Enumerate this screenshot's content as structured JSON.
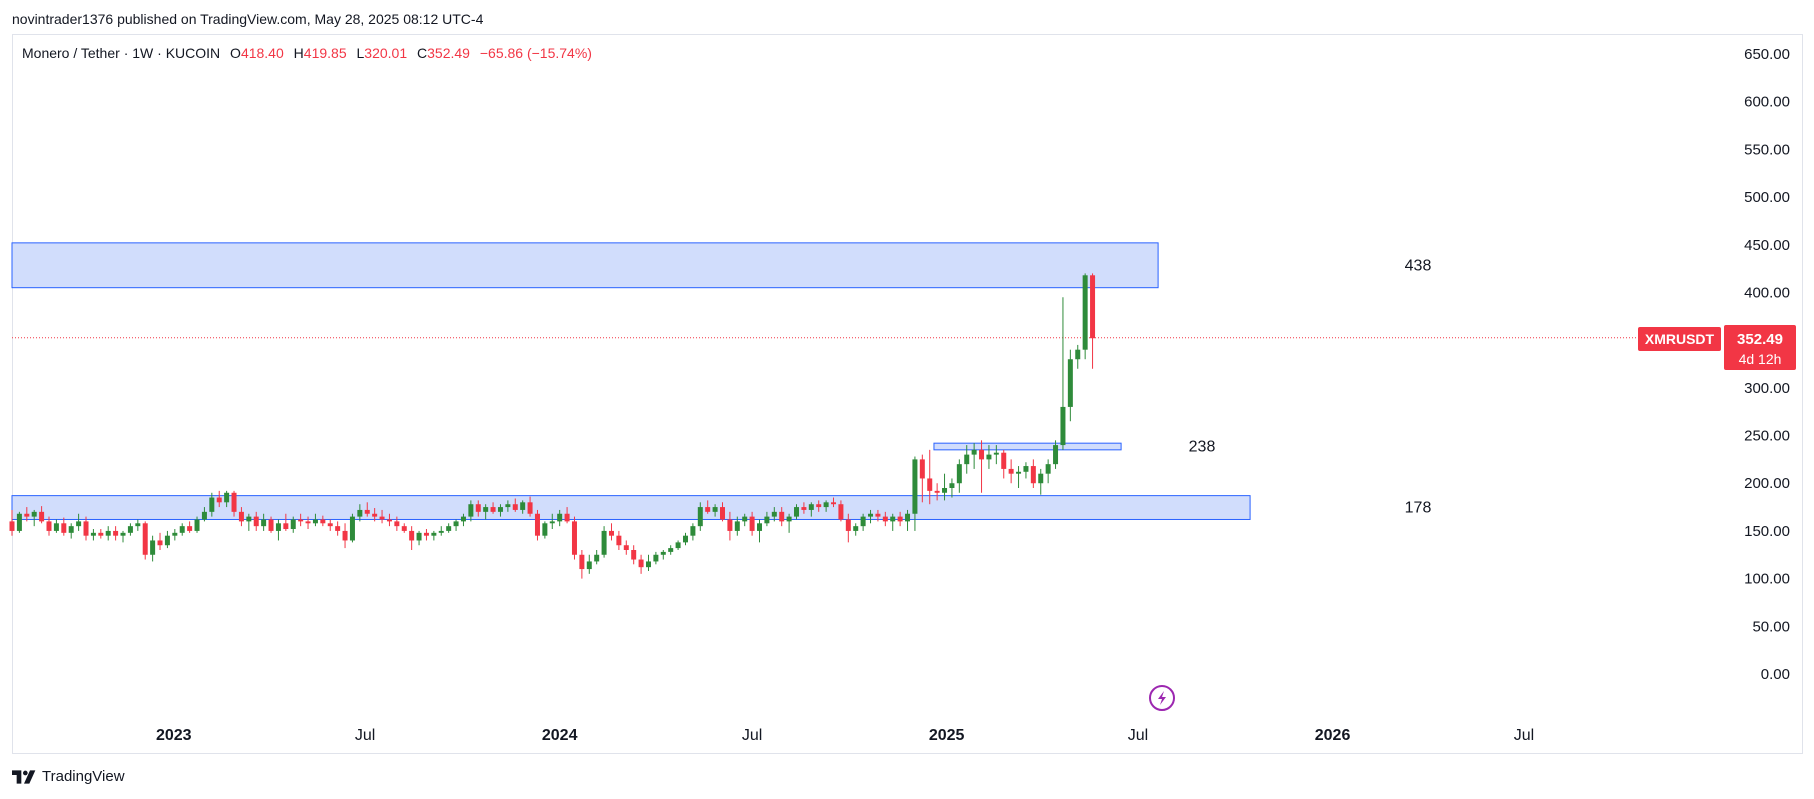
{
  "header": {
    "published": "novintrader1376 published on TradingView.com, May 28, 2025 08:12 UTC-4"
  },
  "legend": {
    "pair": "Monero / Tether",
    "sep1": "·",
    "interval": "1W",
    "sep2": "·",
    "exchange": "KUCOIN",
    "o_label": "O",
    "o_value": "418.40",
    "h_label": "H",
    "h_value": "419.85",
    "l_label": "L",
    "l_value": "320.01",
    "c_label": "C",
    "c_value": "352.49",
    "change": "−65.86 (−15.74%)"
  },
  "price_badge": {
    "symbol": "XMRUSDT",
    "price": "352.49",
    "countdown": "4d 12h"
  },
  "footer": {
    "brand": "TradingView",
    "logo_icon": "tradingview-logo-icon"
  },
  "colors": {
    "up": "#22ab94",
    "up_body": "#2e8b3a",
    "down": "#f23645",
    "zone_fill": "#d1ddfc",
    "zone_border": "#2962ff",
    "last_price_line": "#f23645",
    "badge": "#f23645",
    "flash_icon": "#9c27b0"
  },
  "chart_data": {
    "type": "candlestick",
    "title": "Monero / Tether · 1W · KUCOIN",
    "y_axis": {
      "side": "right",
      "range": [
        0,
        650
      ],
      "ticks": [
        "0.00",
        "50.00",
        "100.00",
        "150.00",
        "200.00",
        "250.00",
        "300.00",
        "350.00",
        "400.00",
        "450.00",
        "500.00",
        "550.00",
        "600.00",
        "650.00"
      ]
    },
    "x_axis": {
      "range": [
        "2022-08-01",
        "2026-10-15"
      ],
      "ticks": [
        {
          "label": "2023",
          "date": "2023-01-01",
          "bold": true
        },
        {
          "label": "Jul",
          "date": "2023-07-01",
          "bold": false
        },
        {
          "label": "2024",
          "date": "2024-01-01",
          "bold": true
        },
        {
          "label": "Jul",
          "date": "2024-07-01",
          "bold": false
        },
        {
          "label": "2025",
          "date": "2025-01-01",
          "bold": true
        },
        {
          "label": "Jul",
          "date": "2025-07-01",
          "bold": false
        },
        {
          "label": "2026",
          "date": "2026-01-01",
          "bold": true
        },
        {
          "label": "Jul",
          "date": "2026-07-01",
          "bold": false
        }
      ]
    },
    "grid": false,
    "last_price": 352.49,
    "zones": [
      {
        "label": "438",
        "y_low": 405,
        "y_high": 452,
        "x_start": "2022-08-01",
        "x_end": "2025-07-20"
      },
      {
        "label": "238",
        "y_low": 235,
        "y_high": 242,
        "x_start": "2024-12-20",
        "x_end": "2025-06-15"
      },
      {
        "label": "178",
        "y_low": 162,
        "y_high": 187,
        "x_start": "2022-08-01",
        "x_end": "2025-10-15"
      }
    ],
    "ohlc": [
      [
        "2022-08-01",
        160,
        172,
        145,
        150
      ],
      [
        "2022-08-08",
        150,
        170,
        148,
        168
      ],
      [
        "2022-08-15",
        168,
        175,
        160,
        165
      ],
      [
        "2022-08-22",
        165,
        172,
        155,
        170
      ],
      [
        "2022-08-29",
        170,
        176,
        158,
        160
      ],
      [
        "2022-09-05",
        160,
        165,
        145,
        150
      ],
      [
        "2022-09-12",
        150,
        162,
        148,
        158
      ],
      [
        "2022-09-19",
        158,
        164,
        145,
        148
      ],
      [
        "2022-09-26",
        148,
        158,
        142,
        155
      ],
      [
        "2022-10-03",
        155,
        168,
        150,
        160
      ],
      [
        "2022-10-10",
        160,
        165,
        140,
        145
      ],
      [
        "2022-10-17",
        145,
        152,
        140,
        148
      ],
      [
        "2022-10-24",
        148,
        152,
        142,
        145
      ],
      [
        "2022-10-31",
        145,
        155,
        140,
        150
      ],
      [
        "2022-11-07",
        150,
        155,
        140,
        145
      ],
      [
        "2022-11-14",
        145,
        150,
        138,
        148
      ],
      [
        "2022-11-21",
        148,
        158,
        145,
        155
      ],
      [
        "2022-11-28",
        155,
        162,
        150,
        158
      ],
      [
        "2022-12-05",
        158,
        160,
        120,
        125
      ],
      [
        "2022-12-12",
        125,
        145,
        118,
        140
      ],
      [
        "2022-12-19",
        140,
        148,
        130,
        135
      ],
      [
        "2022-12-26",
        135,
        150,
        132,
        145
      ],
      [
        "2023-01-02",
        145,
        152,
        140,
        148
      ],
      [
        "2023-01-09",
        148,
        158,
        145,
        155
      ],
      [
        "2023-01-16",
        155,
        160,
        148,
        150
      ],
      [
        "2023-01-23",
        150,
        165,
        148,
        162
      ],
      [
        "2023-01-30",
        162,
        175,
        160,
        170
      ],
      [
        "2023-02-06",
        170,
        190,
        165,
        185
      ],
      [
        "2023-02-13",
        185,
        192,
        175,
        180
      ],
      [
        "2023-02-20",
        180,
        192,
        175,
        190
      ],
      [
        "2023-02-27",
        190,
        192,
        165,
        170
      ],
      [
        "2023-03-06",
        170,
        175,
        155,
        160
      ],
      [
        "2023-03-13",
        160,
        168,
        150,
        165
      ],
      [
        "2023-03-20",
        165,
        170,
        150,
        155
      ],
      [
        "2023-03-27",
        155,
        168,
        150,
        162
      ],
      [
        "2023-04-03",
        162,
        165,
        148,
        150
      ],
      [
        "2023-04-10",
        150,
        162,
        140,
        158
      ],
      [
        "2023-04-17",
        158,
        168,
        150,
        152
      ],
      [
        "2023-04-24",
        152,
        165,
        148,
        162
      ],
      [
        "2023-05-01",
        162,
        168,
        155,
        160
      ],
      [
        "2023-05-08",
        160,
        165,
        152,
        158
      ],
      [
        "2023-05-15",
        158,
        168,
        155,
        162
      ],
      [
        "2023-05-22",
        162,
        166,
        155,
        158
      ],
      [
        "2023-05-29",
        158,
        162,
        150,
        155
      ],
      [
        "2023-06-05",
        155,
        160,
        145,
        150
      ],
      [
        "2023-06-12",
        150,
        158,
        132,
        140
      ],
      [
        "2023-06-19",
        140,
        168,
        138,
        165
      ],
      [
        "2023-06-26",
        165,
        178,
        160,
        172
      ],
      [
        "2023-07-03",
        172,
        180,
        165,
        168
      ],
      [
        "2023-07-10",
        168,
        174,
        160,
        165
      ],
      [
        "2023-07-17",
        165,
        172,
        158,
        162
      ],
      [
        "2023-07-24",
        162,
        168,
        155,
        160
      ],
      [
        "2023-07-31",
        160,
        165,
        150,
        155
      ],
      [
        "2023-08-07",
        155,
        158,
        148,
        150
      ],
      [
        "2023-08-14",
        150,
        155,
        130,
        140
      ],
      [
        "2023-08-21",
        140,
        150,
        135,
        148
      ],
      [
        "2023-08-28",
        148,
        152,
        140,
        145
      ],
      [
        "2023-09-04",
        145,
        150,
        140,
        148
      ],
      [
        "2023-09-11",
        148,
        155,
        145,
        150
      ],
      [
        "2023-09-18",
        150,
        158,
        148,
        155
      ],
      [
        "2023-09-25",
        155,
        162,
        150,
        160
      ],
      [
        "2023-10-02",
        160,
        168,
        155,
        165
      ],
      [
        "2023-10-09",
        165,
        182,
        160,
        178
      ],
      [
        "2023-10-16",
        178,
        182,
        165,
        170
      ],
      [
        "2023-10-23",
        170,
        178,
        162,
        175
      ],
      [
        "2023-10-30",
        175,
        180,
        168,
        170
      ],
      [
        "2023-11-06",
        170,
        178,
        165,
        175
      ],
      [
        "2023-11-13",
        175,
        182,
        170,
        178
      ],
      [
        "2023-11-20",
        178,
        184,
        170,
        172
      ],
      [
        "2023-11-27",
        172,
        182,
        168,
        180
      ],
      [
        "2023-12-04",
        180,
        186,
        165,
        168
      ],
      [
        "2023-12-11",
        168,
        172,
        140,
        145
      ],
      [
        "2023-12-18",
        145,
        160,
        142,
        158
      ],
      [
        "2023-12-25",
        158,
        168,
        152,
        160
      ],
      [
        "2024-01-01",
        160,
        172,
        155,
        168
      ],
      [
        "2024-01-08",
        168,
        175,
        158,
        160
      ],
      [
        "2024-01-15",
        160,
        165,
        120,
        125
      ],
      [
        "2024-01-22",
        125,
        130,
        100,
        110
      ],
      [
        "2024-01-29",
        110,
        125,
        105,
        118
      ],
      [
        "2024-02-05",
        118,
        130,
        115,
        125
      ],
      [
        "2024-02-12",
        125,
        155,
        122,
        150
      ],
      [
        "2024-02-19",
        150,
        158,
        140,
        145
      ],
      [
        "2024-02-26",
        145,
        150,
        130,
        135
      ],
      [
        "2024-03-04",
        135,
        140,
        125,
        130
      ],
      [
        "2024-03-11",
        130,
        135,
        115,
        120
      ],
      [
        "2024-03-18",
        120,
        125,
        105,
        112
      ],
      [
        "2024-03-25",
        112,
        125,
        108,
        118
      ],
      [
        "2024-04-01",
        118,
        128,
        115,
        125
      ],
      [
        "2024-04-08",
        125,
        130,
        120,
        128
      ],
      [
        "2024-04-15",
        128,
        135,
        125,
        132
      ],
      [
        "2024-04-22",
        132,
        140,
        130,
        138
      ],
      [
        "2024-04-29",
        138,
        148,
        135,
        145
      ],
      [
        "2024-05-06",
        145,
        158,
        140,
        155
      ],
      [
        "2024-05-13",
        155,
        180,
        150,
        175
      ],
      [
        "2024-05-20",
        175,
        182,
        168,
        170
      ],
      [
        "2024-05-27",
        170,
        178,
        165,
        175
      ],
      [
        "2024-06-03",
        175,
        180,
        160,
        162
      ],
      [
        "2024-06-10",
        162,
        170,
        140,
        150
      ],
      [
        "2024-06-17",
        150,
        165,
        145,
        160
      ],
      [
        "2024-06-24",
        160,
        168,
        155,
        165
      ],
      [
        "2024-07-01",
        165,
        170,
        145,
        150
      ],
      [
        "2024-07-08",
        150,
        162,
        138,
        158
      ],
      [
        "2024-07-15",
        158,
        170,
        155,
        165
      ],
      [
        "2024-07-22",
        165,
        175,
        160,
        170
      ],
      [
        "2024-07-29",
        170,
        175,
        155,
        160
      ],
      [
        "2024-08-05",
        160,
        168,
        148,
        165
      ],
      [
        "2024-08-12",
        165,
        178,
        162,
        175
      ],
      [
        "2024-08-19",
        175,
        180,
        168,
        172
      ],
      [
        "2024-08-26",
        172,
        180,
        165,
        178
      ],
      [
        "2024-09-02",
        178,
        182,
        170,
        175
      ],
      [
        "2024-09-09",
        175,
        182,
        170,
        180
      ],
      [
        "2024-09-16",
        180,
        185,
        175,
        178
      ],
      [
        "2024-09-23",
        178,
        182,
        160,
        162
      ],
      [
        "2024-09-30",
        162,
        168,
        138,
        150
      ],
      [
        "2024-10-07",
        150,
        158,
        145,
        155
      ],
      [
        "2024-10-14",
        155,
        168,
        150,
        165
      ],
      [
        "2024-10-21",
        165,
        172,
        158,
        168
      ],
      [
        "2024-10-28",
        168,
        172,
        160,
        165
      ],
      [
        "2024-11-04",
        165,
        170,
        155,
        160
      ],
      [
        "2024-11-11",
        160,
        168,
        150,
        165
      ],
      [
        "2024-11-18",
        165,
        170,
        155,
        160
      ],
      [
        "2024-11-25",
        160,
        172,
        150,
        168
      ],
      [
        "2024-12-02",
        168,
        228,
        150,
        225
      ],
      [
        "2024-12-09",
        225,
        230,
        180,
        205
      ],
      [
        "2024-12-16",
        205,
        235,
        178,
        192
      ],
      [
        "2024-12-23",
        192,
        200,
        182,
        190
      ],
      [
        "2024-12-30",
        190,
        210,
        182,
        195
      ],
      [
        "2025-01-06",
        195,
        205,
        185,
        200
      ],
      [
        "2025-01-13",
        200,
        225,
        190,
        220
      ],
      [
        "2025-01-20",
        220,
        240,
        210,
        230
      ],
      [
        "2025-01-27",
        230,
        242,
        215,
        235
      ],
      [
        "2025-02-03",
        235,
        245,
        190,
        225
      ],
      [
        "2025-02-10",
        225,
        240,
        215,
        230
      ],
      [
        "2025-02-17",
        230,
        240,
        220,
        232
      ],
      [
        "2025-02-24",
        232,
        235,
        205,
        215
      ],
      [
        "2025-03-03",
        215,
        225,
        200,
        210
      ],
      [
        "2025-03-10",
        210,
        218,
        195,
        212
      ],
      [
        "2025-03-17",
        212,
        222,
        205,
        218
      ],
      [
        "2025-03-24",
        218,
        225,
        195,
        200
      ],
      [
        "2025-03-31",
        200,
        215,
        188,
        210
      ],
      [
        "2025-04-07",
        210,
        225,
        200,
        220
      ],
      [
        "2025-04-14",
        220,
        245,
        215,
        240
      ],
      [
        "2025-04-21",
        240,
        395,
        235,
        280
      ],
      [
        "2025-04-28",
        280,
        340,
        265,
        330
      ],
      [
        "2025-05-05",
        330,
        345,
        320,
        340
      ],
      [
        "2025-05-12",
        340,
        420,
        330,
        418
      ],
      [
        "2025-05-19",
        418,
        420,
        320,
        352
      ]
    ]
  }
}
